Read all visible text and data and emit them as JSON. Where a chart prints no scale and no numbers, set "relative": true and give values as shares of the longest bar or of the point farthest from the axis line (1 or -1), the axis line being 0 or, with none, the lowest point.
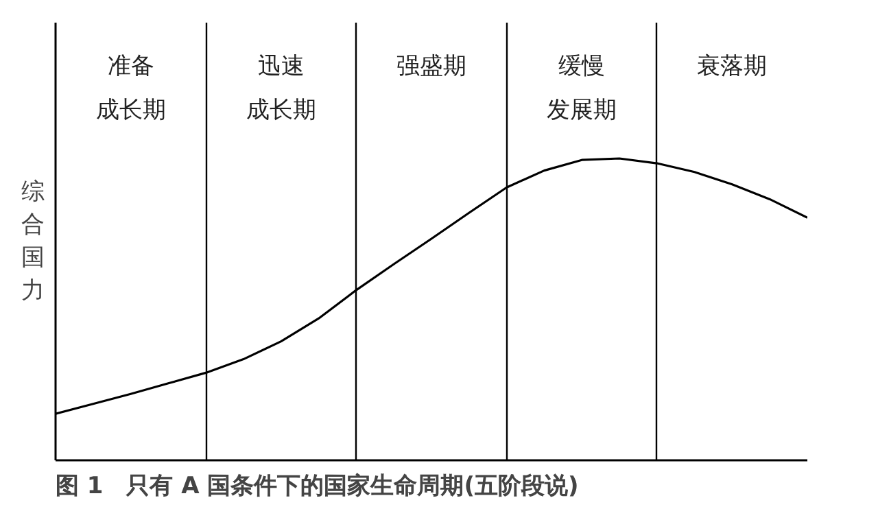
{
  "chart_data": {
    "type": "line",
    "relative": true,
    "grid": "x",
    "ylabel": "综合国力",
    "annotations": [
      "准备成长期",
      "迅速成长期",
      "强盛期",
      "缓慢发展期",
      "衰落期",
      "图 1　只有 A 国条件下的国家生命周期(五阶段说)"
    ],
    "categories": [
      null,
      null,
      null,
      null,
      null,
      null,
      null,
      null,
      null,
      null,
      null,
      null,
      null,
      null,
      null,
      null,
      null,
      null,
      null,
      null,
      null
    ],
    "series": [
      {
        "color": "#000000",
        "values": [
          0.154,
          0.187,
          0.22,
          0.255,
          0.29,
          0.335,
          0.394,
          0.47,
          0.564,
          0.65,
          0.734,
          0.82,
          0.904,
          0.96,
          0.995,
          1.0,
          0.984,
          0.955,
          0.914,
          0.865,
          0.804
        ]
      }
    ]
  }
}
